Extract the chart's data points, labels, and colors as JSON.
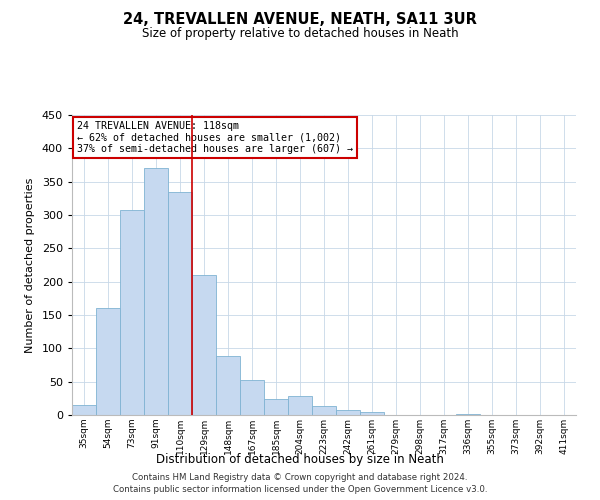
{
  "title": "24, TREVALLEN AVENUE, NEATH, SA11 3UR",
  "subtitle": "Size of property relative to detached houses in Neath",
  "xlabel": "Distribution of detached houses by size in Neath",
  "ylabel": "Number of detached properties",
  "bar_labels": [
    "35sqm",
    "54sqm",
    "73sqm",
    "91sqm",
    "110sqm",
    "129sqm",
    "148sqm",
    "167sqm",
    "185sqm",
    "204sqm",
    "223sqm",
    "242sqm",
    "261sqm",
    "279sqm",
    "298sqm",
    "317sqm",
    "336sqm",
    "355sqm",
    "373sqm",
    "392sqm",
    "411sqm"
  ],
  "bar_values": [
    15,
    160,
    307,
    370,
    335,
    210,
    88,
    52,
    24,
    29,
    13,
    8,
    5,
    0,
    0,
    0,
    1,
    0,
    0,
    0,
    0
  ],
  "bar_color": "#c6d9f0",
  "bar_edge_color": "#7fb3d3",
  "vline_x": 4.5,
  "vline_color": "#cc0000",
  "annotation_title": "24 TREVALLEN AVENUE: 118sqm",
  "annotation_line1": "← 62% of detached houses are smaller (1,002)",
  "annotation_line2": "37% of semi-detached houses are larger (607) →",
  "annotation_box_color": "#ffffff",
  "annotation_box_edge": "#cc0000",
  "ylim": [
    0,
    450
  ],
  "yticks": [
    0,
    50,
    100,
    150,
    200,
    250,
    300,
    350,
    400,
    450
  ],
  "footer1": "Contains HM Land Registry data © Crown copyright and database right 2024.",
  "footer2": "Contains public sector information licensed under the Open Government Licence v3.0.",
  "background_color": "#ffffff",
  "grid_color": "#c8d8e8"
}
